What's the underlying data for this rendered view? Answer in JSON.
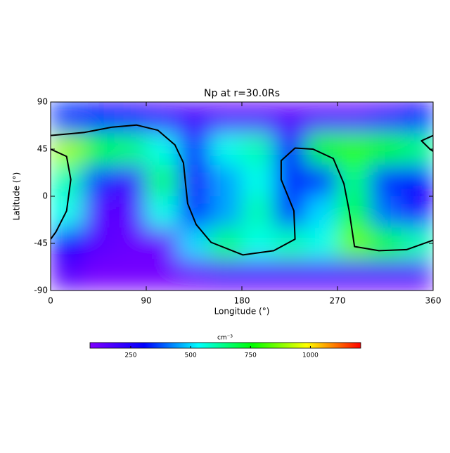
{
  "chart_data": {
    "type": "heatmap",
    "title": "Np at r=30.0Rs",
    "x_label": "Longitude (°)",
    "y_label": "Latitude (°)",
    "x": [
      15,
      45,
      75,
      105,
      135,
      165,
      195,
      225,
      255,
      285,
      315,
      345
    ],
    "y": [
      75,
      45,
      15,
      -15,
      -45,
      -75
    ],
    "values": [
      [
        350,
        300,
        250,
        200,
        180,
        150,
        150,
        150,
        150,
        150,
        200,
        300
      ],
      [
        900,
        700,
        650,
        550,
        350,
        550,
        600,
        300,
        750,
        800,
        750,
        650
      ],
      [
        600,
        350,
        200,
        650,
        250,
        450,
        550,
        350,
        350,
        650,
        350,
        300
      ],
      [
        550,
        150,
        150,
        550,
        350,
        450,
        600,
        350,
        500,
        700,
        400,
        250
      ],
      [
        300,
        150,
        120,
        120,
        500,
        650,
        550,
        600,
        550,
        850,
        700,
        600
      ],
      [
        150,
        100,
        100,
        100,
        120,
        150,
        150,
        150,
        150,
        150,
        150,
        150
      ]
    ],
    "xlim": [
      0,
      360
    ],
    "ylim": [
      -90,
      90
    ],
    "xticks": [
      0,
      90,
      180,
      270,
      360
    ],
    "yticks": [
      -90,
      -45,
      0,
      45,
      90
    ],
    "colormap": [
      "#7f00ff",
      "#0000ff",
      "#00ffff",
      "#00ff00",
      "#ffff00",
      "#ff0000"
    ],
    "colorbar": {
      "label": "cm⁻³",
      "lim": [
        80,
        1210
      ],
      "ticks": [
        250,
        500,
        750,
        1000
      ]
    },
    "contour": {
      "color": "#000000",
      "x": [
        0,
        32,
        58,
        81,
        101,
        117,
        125,
        127,
        129,
        137,
        151,
        181,
        210,
        230,
        229,
        217,
        217,
        230,
        247,
        266,
        276,
        281,
        286,
        309,
        335,
        360,
        null,
        360,
        349,
        357,
        360,
        null,
        0,
        15,
        19,
        15,
        5,
        0
      ],
      "y": [
        58,
        61,
        66,
        68,
        63,
        49,
        32,
        12,
        -7,
        -27,
        -44,
        -56,
        -52,
        -41,
        -14,
        16,
        34,
        46,
        45,
        36,
        12,
        -14,
        -48,
        -52,
        -51,
        -42,
        null,
        58,
        53,
        45,
        43,
        null,
        45,
        38,
        16,
        -14,
        -34,
        -41
      ]
    }
  }
}
